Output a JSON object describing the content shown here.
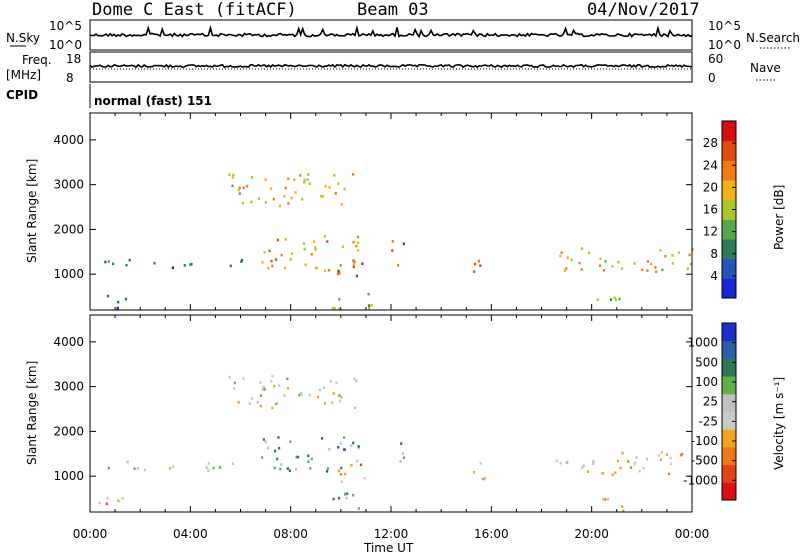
{
  "header": {
    "station": "Dome C East (fitACF)",
    "beam": "Beam 03",
    "date": "04/Nov/2017"
  },
  "params": {
    "nsky_label": "N.Sky",
    "nsearch_label": "N.Search",
    "freq_label_line1": "Freq.",
    "freq_label_line2": "[MHz]",
    "nave_label": "Nave",
    "cpid_label": "CPID",
    "cpid_value": "normal (fast) 151",
    "noise_left_ticks": [
      "10^5",
      "10^0"
    ],
    "noise_right_ticks": [
      "10^5",
      "10^0"
    ],
    "freq_left_ticks": [
      "18",
      "8"
    ],
    "freq_right_ticks": [
      "60",
      "0"
    ]
  },
  "colors": {
    "power_scale": [
      "#1a23d8",
      "#2456b8",
      "#2f7d58",
      "#57a84a",
      "#a8c72c",
      "#f1b213",
      "#ef7b12",
      "#e24a12",
      "#d60f0f"
    ],
    "velocity_scale": [
      "#1b2fc9",
      "#2a5fa6",
      "#2e7a4e",
      "#5db548",
      "#bfbfbf",
      "#c8c8c8",
      "#f2a21c",
      "#ec7a1a",
      "#e2421a",
      "#d81212"
    ],
    "axis": "#000000"
  },
  "chart_data": [
    {
      "type": "heatmap",
      "name": "power",
      "title": "",
      "xlabel": "",
      "ylabel": "Slant Range [km]",
      "x_ticks": [
        "00:00",
        "04:00",
        "08:00",
        "12:00",
        "16:00",
        "20:00",
        "00:00"
      ],
      "y_ticks": [
        "1000",
        "2000",
        "3000",
        "4000"
      ],
      "ylim": [
        200,
        4600
      ],
      "xlim_hours": [
        0,
        24
      ],
      "colorbar": {
        "label": "Power [dB]",
        "ticks": [
          "4",
          "8",
          "12",
          "16",
          "20",
          "24",
          "28"
        ],
        "range": [
          0,
          30
        ]
      },
      "regions": [
        {
          "t0": 0.3,
          "t1": 6.2,
          "r0": 1150,
          "r1": 1350,
          "level": 0.25
        },
        {
          "t0": 0.2,
          "t1": 1.5,
          "r0": 250,
          "r1": 600,
          "level": 0.15
        },
        {
          "t0": 5.5,
          "t1": 10.6,
          "r0": 2550,
          "r1": 3300,
          "level": 0.55
        },
        {
          "t0": 6.8,
          "t1": 10.8,
          "r0": 1100,
          "r1": 1900,
          "level": 0.65
        },
        {
          "t0": 9.6,
          "t1": 11.0,
          "r0": 850,
          "r1": 1300,
          "level": 0.85
        },
        {
          "t0": 9.6,
          "t1": 11.5,
          "r0": 250,
          "r1": 650,
          "level": 0.45
        },
        {
          "t0": 12.0,
          "t1": 12.5,
          "r0": 1100,
          "r1": 1800,
          "level": 0.9
        },
        {
          "t0": 15.2,
          "t1": 15.8,
          "r0": 950,
          "r1": 1600,
          "level": 0.85
        },
        {
          "t0": 18.5,
          "t1": 24.0,
          "r0": 1050,
          "r1": 1600,
          "level": 0.6
        },
        {
          "t0": 20.0,
          "t1": 21.5,
          "r0": 250,
          "r1": 550,
          "level": 0.4
        }
      ]
    },
    {
      "type": "heatmap",
      "name": "velocity",
      "title": "",
      "xlabel": "Time UT",
      "ylabel": "Slant Range [km]",
      "x_ticks": [
        "00:00",
        "04:00",
        "08:00",
        "12:00",
        "16:00",
        "20:00",
        "00:00"
      ],
      "y_ticks": [
        "1000",
        "2000",
        "3000",
        "4000"
      ],
      "ylim": [
        200,
        4600
      ],
      "xlim_hours": [
        0,
        24
      ],
      "colorbar": {
        "label": "Velocity [m s⁻¹]",
        "ticks": [
          "1000",
          "500",
          "100",
          "25",
          "-25",
          "-100",
          "-500",
          "-1000"
        ],
        "range": [
          -1200,
          1200
        ]
      },
      "regions": [
        {
          "t0": 0.3,
          "t1": 6.2,
          "r0": 1150,
          "r1": 1350,
          "level": 0.5
        },
        {
          "t0": 0.2,
          "t1": 1.5,
          "r0": 250,
          "r1": 600,
          "level": 0.35
        },
        {
          "t0": 5.5,
          "t1": 10.6,
          "r0": 2550,
          "r1": 3300,
          "level": 0.5
        },
        {
          "t0": 6.8,
          "t1": 10.8,
          "r0": 1100,
          "r1": 1900,
          "level": 0.7
        },
        {
          "t0": 9.6,
          "t1": 11.0,
          "r0": 850,
          "r1": 1300,
          "level": 0.3
        },
        {
          "t0": 9.6,
          "t1": 11.5,
          "r0": 250,
          "r1": 650,
          "level": 0.75
        },
        {
          "t0": 12.0,
          "t1": 12.5,
          "r0": 1100,
          "r1": 1800,
          "level": 0.7
        },
        {
          "t0": 15.2,
          "t1": 15.8,
          "r0": 950,
          "r1": 1600,
          "level": 0.3
        },
        {
          "t0": 18.5,
          "t1": 24.0,
          "r0": 1050,
          "r1": 1600,
          "level": 0.4
        },
        {
          "t0": 20.0,
          "t1": 21.5,
          "r0": 250,
          "r1": 550,
          "level": 0.35
        }
      ]
    }
  ]
}
